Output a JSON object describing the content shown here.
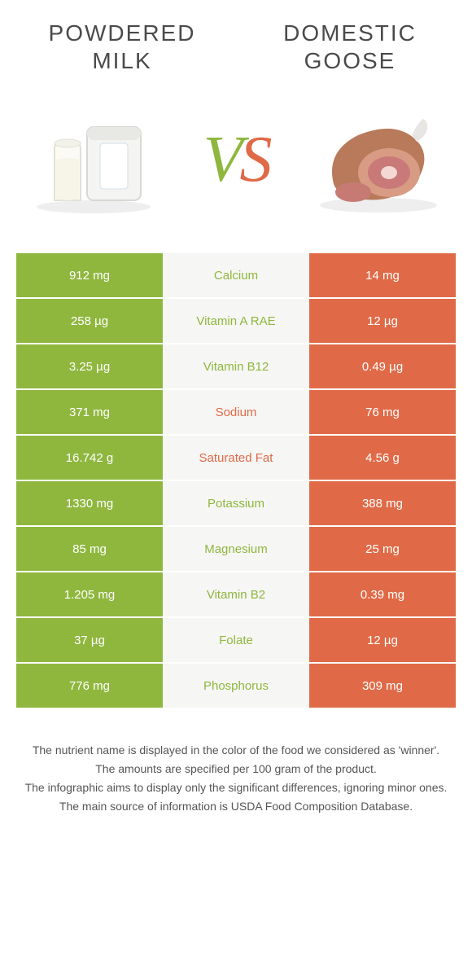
{
  "colors": {
    "left": "#8fb73e",
    "right": "#e06a47",
    "mid_bg": "#f6f6f4",
    "title_text": "#4a4a4a",
    "footer_text": "#555555"
  },
  "foods": {
    "left_title_line1": "Powdered",
    "left_title_line2": "Milk",
    "right_title_line1": "Domestic",
    "right_title_line2": "Goose"
  },
  "vs": {
    "v": "V",
    "s": "S"
  },
  "rows": [
    {
      "left": "912 mg",
      "label": "Calcium",
      "right": "14 mg",
      "winner": "left"
    },
    {
      "left": "258 µg",
      "label": "Vitamin A RAE",
      "right": "12 µg",
      "winner": "left"
    },
    {
      "left": "3.25 µg",
      "label": "Vitamin B12",
      "right": "0.49 µg",
      "winner": "left"
    },
    {
      "left": "371 mg",
      "label": "Sodium",
      "right": "76 mg",
      "winner": "right"
    },
    {
      "left": "16.742 g",
      "label": "Saturated Fat",
      "right": "4.56 g",
      "winner": "right"
    },
    {
      "left": "1330 mg",
      "label": "Potassium",
      "right": "388 mg",
      "winner": "left"
    },
    {
      "left": "85 mg",
      "label": "Magnesium",
      "right": "25 mg",
      "winner": "left"
    },
    {
      "left": "1.205 mg",
      "label": "Vitamin B2",
      "right": "0.39 mg",
      "winner": "left"
    },
    {
      "left": "37 µg",
      "label": "Folate",
      "right": "12 µg",
      "winner": "left"
    },
    {
      "left": "776 mg",
      "label": "Phosphorus",
      "right": "309 mg",
      "winner": "left"
    }
  ],
  "footer": {
    "line1": "The nutrient name is displayed in the color of the food we considered as 'winner'.",
    "line2": "The amounts are specified per 100 gram of the product.",
    "line3": "The infographic aims to display only the significant differences, ignoring minor ones.",
    "line4": "The main source of information is USDA Food Composition Database."
  }
}
